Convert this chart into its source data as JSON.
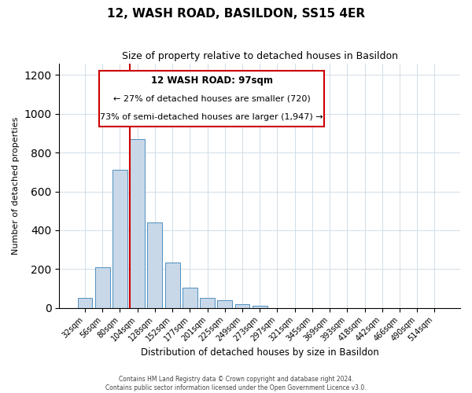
{
  "title": "12, WASH ROAD, BASILDON, SS15 4ER",
  "subtitle": "Size of property relative to detached houses in Basildon",
  "xlabel": "Distribution of detached houses by size in Basildon",
  "ylabel": "Number of detached properties",
  "bar_labels": [
    "32sqm",
    "56sqm",
    "80sqm",
    "104sqm",
    "128sqm",
    "152sqm",
    "177sqm",
    "201sqm",
    "225sqm",
    "249sqm",
    "273sqm",
    "297sqm",
    "321sqm",
    "345sqm",
    "369sqm",
    "393sqm",
    "418sqm",
    "442sqm",
    "466sqm",
    "490sqm",
    "514sqm"
  ],
  "bar_heights": [
    50,
    210,
    710,
    870,
    440,
    235,
    105,
    50,
    40,
    20,
    10,
    0,
    0,
    0,
    0,
    0,
    0,
    0,
    0,
    0,
    0
  ],
  "bar_color": "#c8d8e8",
  "bar_edge_color": "#5090c0",
  "vline_x": 2.575,
  "vline_color": "#cc0000",
  "annotation_title": "12 WASH ROAD: 97sqm",
  "annotation_line1": "← 27% of detached houses are smaller (720)",
  "annotation_line2": "73% of semi-detached houses are larger (1,947) →",
  "annotation_box_color": "#ffffff",
  "annotation_box_edge": "#cc0000",
  "ylim": [
    0,
    1260
  ],
  "yticks": [
    0,
    200,
    400,
    600,
    800,
    1000,
    1200
  ],
  "footnote1": "Contains HM Land Registry data © Crown copyright and database right 2024.",
  "footnote2": "Contains public sector information licensed under the Open Government Licence v3.0."
}
